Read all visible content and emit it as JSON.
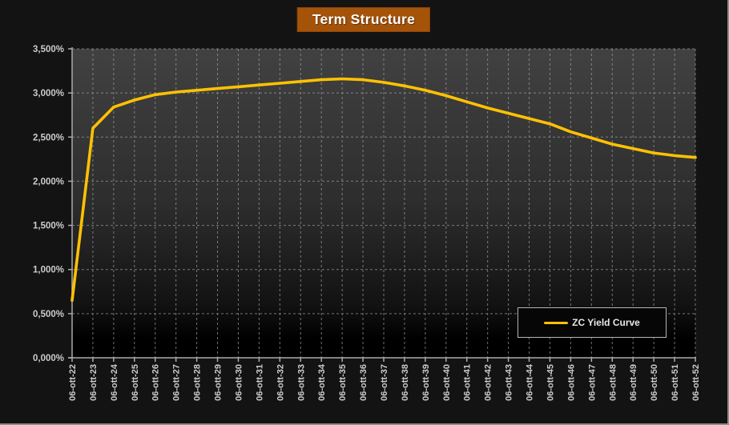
{
  "title": "Term Structure",
  "legend": {
    "label": "ZC Yield Curve"
  },
  "colors": {
    "background": "#131313",
    "title_bg": "#a6530a",
    "title_text": "#ffffff",
    "plot_gradient_top": "#414141",
    "plot_gradient_mid": "#2d2d2d",
    "plot_gradient_low": "#121212",
    "plot_gradient_bottom": "#000000",
    "gridline": "#a0a0a0",
    "axis": "#ababab",
    "tick_label": "#cccccc",
    "curve": "#ffc103",
    "legend_border": "#b5b5b5",
    "legend_bg": "#060606",
    "frame_border": "#8c8c8c"
  },
  "chart_data": {
    "type": "line",
    "title": "Term Structure",
    "x": [
      "06-ott-22",
      "06-ott-23",
      "06-ott-24",
      "06-ott-25",
      "06-ott-26",
      "06-ott-27",
      "06-ott-28",
      "06-ott-29",
      "06-ott-30",
      "06-ott-31",
      "06-ott-32",
      "06-ott-33",
      "06-ott-34",
      "06-ott-35",
      "06-ott-36",
      "06-ott-37",
      "06-ott-38",
      "06-ott-39",
      "06-ott-40",
      "06-ott-41",
      "06-ott-42",
      "06-ott-43",
      "06-ott-44",
      "06-ott-45",
      "06-ott-46",
      "06-ott-47",
      "06-ott-48",
      "06-ott-49",
      "06-ott-50",
      "06-ott-51",
      "06-ott-52"
    ],
    "series": [
      {
        "name": "ZC Yield Curve",
        "values": [
          0.65,
          2.6,
          2.84,
          2.92,
          2.98,
          3.01,
          3.03,
          3.05,
          3.07,
          3.09,
          3.11,
          3.13,
          3.15,
          3.16,
          3.15,
          3.12,
          3.08,
          3.03,
          2.97,
          2.9,
          2.83,
          2.77,
          2.71,
          2.65,
          2.56,
          2.49,
          2.42,
          2.37,
          2.32,
          2.29,
          2.27
        ]
      }
    ],
    "xlabel": "",
    "ylabel": "",
    "ylim": [
      0,
      3.5
    ],
    "ytick_step": 0.5,
    "ytick_labels": [
      "0,000%",
      "0,500%",
      "1,000%",
      "1,500%",
      "2,000%",
      "2,500%",
      "3,000%",
      "3,500%"
    ],
    "grid": true,
    "grid_style": "dashed",
    "legend_position": "bottom-right"
  }
}
